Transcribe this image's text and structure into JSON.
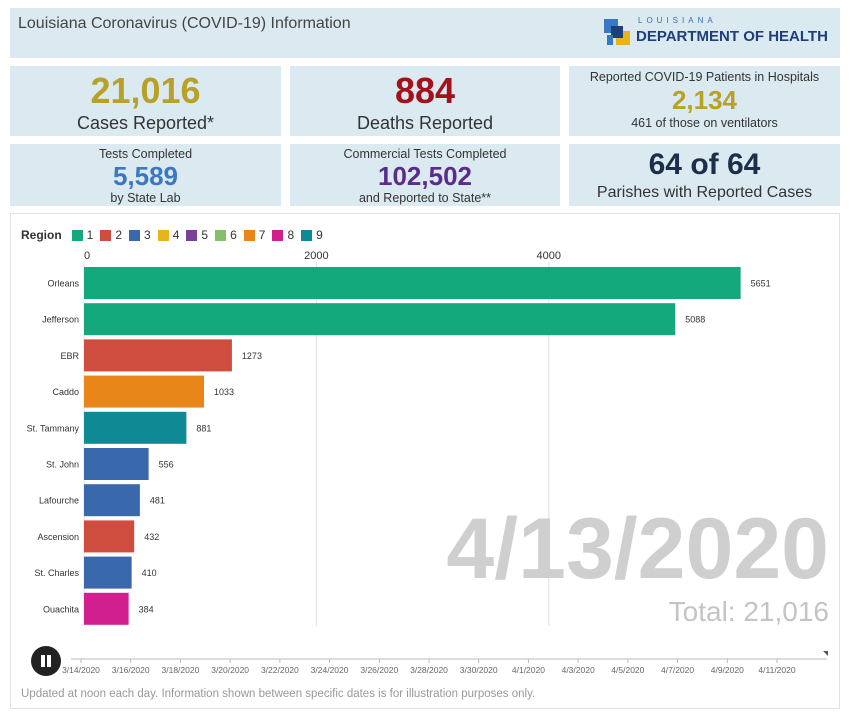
{
  "header": {
    "title": "Louisiana Coronavirus (COVID-19) Information",
    "logo_top": "LOUISIANA",
    "logo_main": "DEPARTMENT OF HEALTH"
  },
  "stats": {
    "cases": {
      "value": "21,016",
      "label": "Cases Reported*",
      "color": "#b8a129"
    },
    "deaths": {
      "value": "884",
      "label": "Deaths Reported",
      "color": "#a3121b"
    },
    "hospital": {
      "title": "Reported COVID-19 Patients in Hospitals",
      "value": "2,134",
      "sub": "461 of those on ventilators",
      "color": "#b8a129"
    },
    "tests": {
      "title": "Tests Completed",
      "value": "5,589",
      "sub": "by State Lab",
      "color": "#3a78c4"
    },
    "commercial": {
      "title": "Commercial Tests Completed",
      "value": "102,502",
      "sub": "and Reported to State**",
      "color": "#5c2c8a"
    },
    "parishes": {
      "value": "64 of 64",
      "label": "Parishes with Reported Cases",
      "color": "#1c2e4a"
    }
  },
  "chart_data": {
    "type": "bar",
    "orientation": "horizontal",
    "legend_title": "Region",
    "legend": [
      {
        "name": "1",
        "color": "#14a97d"
      },
      {
        "name": "2",
        "color": "#cf4d3f"
      },
      {
        "name": "3",
        "color": "#3a68ad"
      },
      {
        "name": "4",
        "color": "#e8b41c"
      },
      {
        "name": "5",
        "color": "#7b3f9c"
      },
      {
        "name": "6",
        "color": "#84c06a"
      },
      {
        "name": "7",
        "color": "#e8861a"
      },
      {
        "name": "8",
        "color": "#d21f8f"
      },
      {
        "name": "9",
        "color": "#0d8a94"
      }
    ],
    "categories": [
      "Orleans",
      "Jefferson",
      "EBR",
      "Caddo",
      "St. Tammany",
      "St. John",
      "Lafourche",
      "Ascension",
      "St. Charles",
      "Ouachita"
    ],
    "values": [
      5651,
      5088,
      1273,
      1033,
      881,
      556,
      481,
      432,
      410,
      384
    ],
    "regions": [
      "1",
      "1",
      "2",
      "7",
      "9",
      "3",
      "3",
      "2",
      "3",
      "8"
    ],
    "x_ticks": [
      0,
      2000,
      4000
    ],
    "xlim": [
      0,
      6500
    ],
    "date_label": "4/13/2020",
    "total_label": "Total: 21,016",
    "timeline_labels": [
      "3/14/2020",
      "3/16/2020",
      "3/18/2020",
      "3/20/2020",
      "3/22/2020",
      "3/24/2020",
      "3/26/2020",
      "3/28/2020",
      "3/30/2020",
      "4/1/2020",
      "4/3/2020",
      "4/5/2020",
      "4/7/2020",
      "4/9/2020",
      "4/11/2020"
    ]
  },
  "footer": "Updated at noon each day. Information shown between specific dates is for illustration purposes only."
}
